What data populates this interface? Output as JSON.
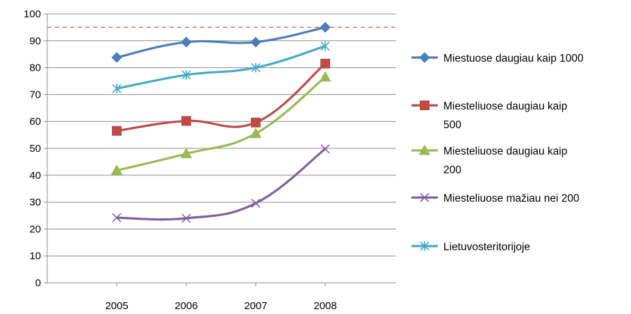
{
  "chart_data": {
    "type": "line",
    "title": "",
    "xlabel": "",
    "ylabel": "",
    "categories": [
      "2005",
      "2006",
      "2007",
      "2008"
    ],
    "ylim": [
      0,
      100
    ],
    "yticks": [
      0,
      10,
      20,
      30,
      40,
      50,
      60,
      70,
      80,
      90,
      100
    ],
    "grid": true,
    "legend_position": "right",
    "reference_line": {
      "value": 95,
      "color": "#e05050",
      "style": "dashed"
    },
    "series": [
      {
        "name": "Miestuose daugiau kaip 1000",
        "legend_lines": [
          "Miestuose daugiau kaip 1000"
        ],
        "values": [
          83.8,
          89.5,
          89.5,
          95.0
        ],
        "color": "#4a7ebb",
        "marker": "diamond"
      },
      {
        "name": "Miesteliuose daugiau kaip 500",
        "legend_lines": [
          "Miesteliuose daugiau kaip",
          "500"
        ],
        "values": [
          56.5,
          60.2,
          59.6,
          81.5
        ],
        "color": "#be4b48",
        "marker": "square"
      },
      {
        "name": "Miesteliuose daugiau kaip 200",
        "legend_lines": [
          "Miesteliuose daugiau kaip",
          "200"
        ],
        "values": [
          41.8,
          48.0,
          55.5,
          76.5
        ],
        "color": "#98b954",
        "marker": "triangle"
      },
      {
        "name": "Miesteliuose mažiau nei 200",
        "legend_lines": [
          "Miesteliuose mažiau nei 200"
        ],
        "values": [
          24.2,
          24.0,
          29.6,
          49.8
        ],
        "color": "#7d60a0",
        "marker": "x"
      },
      {
        "name": "Lietuvosteritorijoje",
        "legend_lines": [
          "Lietuvosteritorijoje"
        ],
        "values": [
          72.2,
          77.3,
          80.0,
          88.0
        ],
        "color": "#46aac5",
        "marker": "star"
      }
    ]
  }
}
